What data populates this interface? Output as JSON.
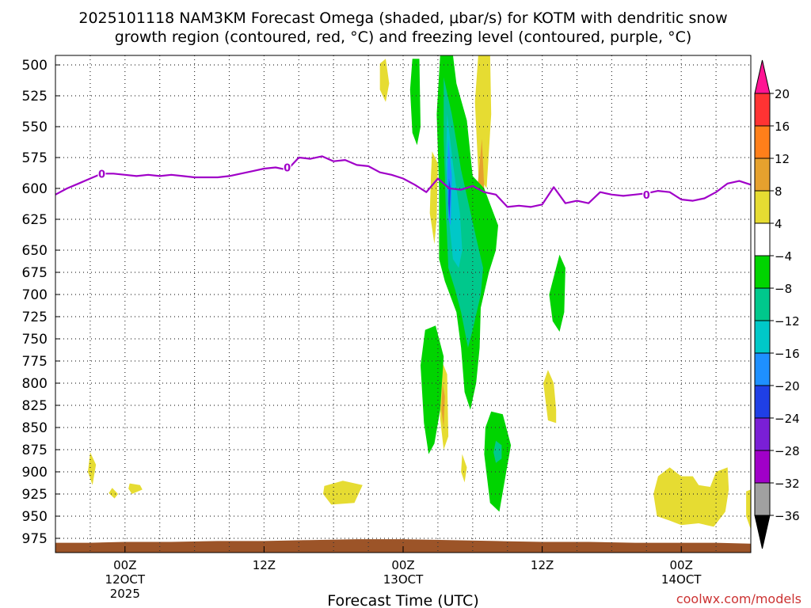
{
  "chart_data": {
    "type": "heatmap",
    "title_line1": "2025101118 NAM3KM Forecast Omega (shaded, μbar/s) for KOTM with dendritic snow",
    "title_line2": "growth region (contoured, red, °C) and freezing level (contoured, purple, °C)",
    "xlabel": "Forecast Time (UTC)",
    "x_unit": "hours since 2025-10-11 18Z",
    "xlim": [
      0,
      60
    ],
    "x_ticks": [
      {
        "x": 6,
        "label": "00Z",
        "sub1": "12OCT",
        "sub2": "2025"
      },
      {
        "x": 18,
        "label": "12Z",
        "sub1": "",
        "sub2": ""
      },
      {
        "x": 30,
        "label": "00Z",
        "sub1": "13OCT",
        "sub2": ""
      },
      {
        "x": 42,
        "label": "12Z",
        "sub1": "",
        "sub2": ""
      },
      {
        "x": 54,
        "label": "00Z",
        "sub1": "14OCT",
        "sub2": ""
      }
    ],
    "ylabel_unit": "hPa",
    "y_ticks": [
      "500",
      "525",
      "550",
      "575",
      "600",
      "625",
      "650",
      "675",
      "700",
      "725",
      "750",
      "775",
      "800",
      "825",
      "850",
      "875",
      "900",
      "925",
      "950",
      "975"
    ],
    "legend": {
      "labels": [
        "20",
        "16",
        "12",
        "8",
        "4",
        "−4",
        "−8",
        "−12",
        "−16",
        "−20",
        "−24",
        "−28",
        "−32",
        "−36"
      ],
      "colors": [
        "#ff1493",
        "#ff3333",
        "#ff7f1a",
        "#e6a12e",
        "#e6dc32",
        "#ffffff",
        "#00d400",
        "#00c88c",
        "#00c8c8",
        "#1e90ff",
        "#1f3fe6",
        "#7a1fd6",
        "#a000c8",
        "#a0a0a0",
        "#000000"
      ]
    },
    "freezing_level_label": "0",
    "freezing_level": [
      [
        0,
        605
      ],
      [
        1,
        600
      ],
      [
        2,
        596
      ],
      [
        3,
        592
      ],
      [
        4,
        588
      ],
      [
        5,
        588
      ],
      [
        6,
        589
      ],
      [
        7,
        590
      ],
      [
        8,
        589
      ],
      [
        9,
        590
      ],
      [
        10,
        589
      ],
      [
        11,
        590
      ],
      [
        12,
        591
      ],
      [
        13,
        591
      ],
      [
        14,
        591
      ],
      [
        15,
        590
      ],
      [
        16,
        588
      ],
      [
        17,
        586
      ],
      [
        18,
        584
      ],
      [
        19,
        583
      ],
      [
        20,
        585
      ],
      [
        21,
        575
      ],
      [
        22,
        576
      ],
      [
        23,
        574
      ],
      [
        24,
        578
      ],
      [
        25,
        577
      ],
      [
        26,
        581
      ],
      [
        27,
        582
      ],
      [
        28,
        587
      ],
      [
        29,
        589
      ],
      [
        30,
        592
      ],
      [
        31,
        597
      ],
      [
        32,
        603
      ],
      [
        33,
        592
      ],
      [
        34,
        600
      ],
      [
        35,
        601
      ],
      [
        36,
        598
      ],
      [
        37,
        603
      ],
      [
        38,
        605
      ],
      [
        39,
        615
      ],
      [
        40,
        614
      ],
      [
        41,
        615
      ],
      [
        42,
        613
      ],
      [
        43,
        599
      ],
      [
        44,
        612
      ],
      [
        45,
        610
      ],
      [
        46,
        612
      ],
      [
        47,
        603
      ],
      [
        48,
        605
      ],
      [
        49,
        606
      ],
      [
        50,
        605
      ],
      [
        51,
        604
      ],
      [
        52,
        602
      ],
      [
        53,
        603
      ],
      [
        54,
        609
      ],
      [
        55,
        610
      ],
      [
        56,
        608
      ],
      [
        57,
        603
      ],
      [
        58,
        596
      ],
      [
        59,
        594
      ],
      [
        60,
        597
      ]
    ],
    "freezing_label_points": [
      [
        4,
        588
      ],
      [
        20,
        583
      ],
      [
        51,
        605
      ]
    ],
    "omega_areas": [
      {
        "level": "4",
        "pts": [
          [
            28.0,
            499
          ],
          [
            28.5,
            495
          ],
          [
            28.8,
            515
          ],
          [
            28.5,
            530
          ],
          [
            28.0,
            520
          ]
        ]
      },
      {
        "level": "4",
        "pts": [
          [
            3.0,
            878
          ],
          [
            3.5,
            892
          ],
          [
            3.2,
            915
          ],
          [
            2.8,
            900
          ]
        ]
      },
      {
        "level": "4",
        "pts": [
          [
            4.9,
            918
          ],
          [
            5.4,
            925
          ],
          [
            5.1,
            930
          ],
          [
            4.6,
            924
          ]
        ]
      },
      {
        "level": "4",
        "pts": [
          [
            6.4,
            913
          ],
          [
            7.3,
            915
          ],
          [
            7.5,
            920
          ],
          [
            6.6,
            925
          ],
          [
            6.3,
            919
          ]
        ]
      },
      {
        "level": "4",
        "pts": [
          [
            23.2,
            916
          ],
          [
            24.8,
            910
          ],
          [
            26.5,
            915
          ],
          [
            25.8,
            935
          ],
          [
            23.8,
            937
          ],
          [
            23.1,
            925
          ]
        ]
      },
      {
        "level": "4",
        "pts": [
          [
            32.5,
            570
          ],
          [
            33.0,
            580
          ],
          [
            32.9,
            625
          ],
          [
            32.7,
            645
          ],
          [
            32.3,
            620
          ],
          [
            32.4,
            590
          ]
        ]
      },
      {
        "level": "4",
        "pts": [
          [
            33.4,
            777
          ],
          [
            33.8,
            790
          ],
          [
            33.9,
            860
          ],
          [
            33.5,
            875
          ],
          [
            33.2,
            840
          ],
          [
            33.2,
            800
          ]
        ]
      },
      {
        "level": "4",
        "pts": [
          [
            36.5,
            490
          ],
          [
            37.5,
            490
          ],
          [
            37.6,
            540
          ],
          [
            37.2,
            600
          ],
          [
            36.5,
            590
          ],
          [
            36.2,
            530
          ]
        ]
      },
      {
        "level": "4",
        "pts": [
          [
            35.1,
            880
          ],
          [
            35.5,
            895
          ],
          [
            35.3,
            912
          ],
          [
            35.0,
            900
          ]
        ]
      },
      {
        "level": "4",
        "pts": [
          [
            42.5,
            785
          ],
          [
            43.0,
            800
          ],
          [
            43.2,
            830
          ],
          [
            43.2,
            845
          ],
          [
            42.5,
            842
          ],
          [
            42.1,
            800
          ]
        ]
      },
      {
        "level": "4",
        "pts": [
          [
            52.0,
            905
          ],
          [
            53.0,
            895
          ],
          [
            54.0,
            905
          ],
          [
            55.0,
            905
          ],
          [
            55.5,
            915
          ],
          [
            56.5,
            917
          ],
          [
            57.0,
            900
          ],
          [
            58.0,
            895
          ],
          [
            58.1,
            920
          ],
          [
            57.8,
            945
          ],
          [
            56.8,
            962
          ],
          [
            55.5,
            958
          ],
          [
            54.0,
            960
          ],
          [
            53.0,
            955
          ],
          [
            51.9,
            950
          ],
          [
            51.6,
            925
          ]
        ]
      },
      {
        "level": "4",
        "pts": [
          [
            59.6,
            922
          ],
          [
            60.0,
            920
          ],
          [
            60.0,
            965
          ],
          [
            59.6,
            950
          ]
        ]
      },
      {
        "level": "12",
        "pts": [
          [
            36.8,
            560
          ],
          [
            37.0,
            600
          ],
          [
            36.8,
            650
          ],
          [
            36.4,
            600
          ]
        ]
      },
      {
        "level": "12",
        "pts": [
          [
            33.4,
            800
          ],
          [
            33.6,
            815
          ],
          [
            33.5,
            850
          ],
          [
            33.3,
            830
          ]
        ]
      },
      {
        "level": "-4",
        "pts": [
          [
            30.8,
            495
          ],
          [
            31.4,
            495
          ],
          [
            31.5,
            550
          ],
          [
            31.2,
            565
          ],
          [
            30.8,
            555
          ],
          [
            30.6,
            520
          ]
        ]
      },
      {
        "level": "-4",
        "pts": [
          [
            33.2,
            492
          ],
          [
            34.3,
            492
          ],
          [
            34.6,
            515
          ],
          [
            35.5,
            545
          ],
          [
            36.0,
            590
          ],
          [
            37.0,
            600
          ],
          [
            38.2,
            630
          ],
          [
            38.0,
            650
          ],
          [
            37.4,
            675
          ],
          [
            36.7,
            715
          ],
          [
            36.6,
            760
          ],
          [
            36.3,
            800
          ],
          [
            35.8,
            830
          ],
          [
            35.3,
            810
          ],
          [
            35.0,
            760
          ],
          [
            34.6,
            720
          ],
          [
            33.6,
            685
          ],
          [
            33.1,
            660
          ],
          [
            33.1,
            600
          ],
          [
            32.9,
            540
          ]
        ]
      },
      {
        "level": "-4",
        "pts": [
          [
            32.8,
            735
          ],
          [
            33.5,
            770
          ],
          [
            33.2,
            830
          ],
          [
            32.7,
            868
          ],
          [
            32.2,
            880
          ],
          [
            31.8,
            845
          ],
          [
            31.5,
            780
          ],
          [
            31.9,
            740
          ]
        ]
      },
      {
        "level": "-4",
        "pts": [
          [
            37.6,
            832
          ],
          [
            38.6,
            835
          ],
          [
            39.3,
            870
          ],
          [
            38.9,
            900
          ],
          [
            38.3,
            945
          ],
          [
            37.5,
            935
          ],
          [
            37.0,
            880
          ],
          [
            37.1,
            850
          ]
        ]
      },
      {
        "level": "-4",
        "pts": [
          [
            43.5,
            655
          ],
          [
            44.0,
            670
          ],
          [
            43.9,
            720
          ],
          [
            43.5,
            742
          ],
          [
            42.9,
            730
          ],
          [
            42.6,
            700
          ]
        ]
      },
      {
        "level": "-8",
        "pts": [
          [
            33.5,
            510
          ],
          [
            34.2,
            540
          ],
          [
            35.0,
            585
          ],
          [
            36.3,
            640
          ],
          [
            36.9,
            670
          ],
          [
            36.7,
            700
          ],
          [
            36.0,
            740
          ],
          [
            35.6,
            760
          ],
          [
            35.0,
            720
          ],
          [
            34.5,
            695
          ],
          [
            33.9,
            670
          ],
          [
            33.7,
            620
          ],
          [
            33.5,
            560
          ]
        ]
      },
      {
        "level": "-8",
        "pts": [
          [
            38.0,
            865
          ],
          [
            38.5,
            870
          ],
          [
            38.5,
            885
          ],
          [
            38.0,
            890
          ],
          [
            37.8,
            878
          ]
        ]
      },
      {
        "level": "-12",
        "pts": [
          [
            33.8,
            540
          ],
          [
            34.3,
            580
          ],
          [
            34.9,
            620
          ],
          [
            35.1,
            650
          ],
          [
            34.8,
            670
          ],
          [
            34.3,
            660
          ],
          [
            33.9,
            620
          ],
          [
            33.7,
            580
          ]
        ]
      },
      {
        "level": "-16",
        "pts": [
          [
            33.9,
            560
          ],
          [
            34.2,
            590
          ],
          [
            34.1,
            630
          ],
          [
            33.9,
            625
          ],
          [
            33.8,
            590
          ]
        ]
      },
      {
        "level": "-20",
        "pts": [
          [
            33.95,
            592
          ],
          [
            34.1,
            600
          ],
          [
            34.0,
            625
          ],
          [
            33.9,
            612
          ]
        ]
      }
    ],
    "terrain_pressure": [
      [
        0,
        980
      ],
      [
        3,
        980
      ],
      [
        6,
        979
      ],
      [
        10,
        979
      ],
      [
        14,
        978
      ],
      [
        18,
        978
      ],
      [
        22,
        977
      ],
      [
        26,
        976
      ],
      [
        30,
        976
      ],
      [
        34,
        977
      ],
      [
        38,
        978
      ],
      [
        42,
        979
      ],
      [
        46,
        979
      ],
      [
        50,
        980
      ],
      [
        54,
        980
      ],
      [
        57,
        980
      ],
      [
        60,
        981
      ]
    ],
    "terrain_color": "#9c5428",
    "line_color": "#a000c8",
    "grid": true
  },
  "credit": "coolwx.com/models",
  "credit_color": "#cc3333"
}
